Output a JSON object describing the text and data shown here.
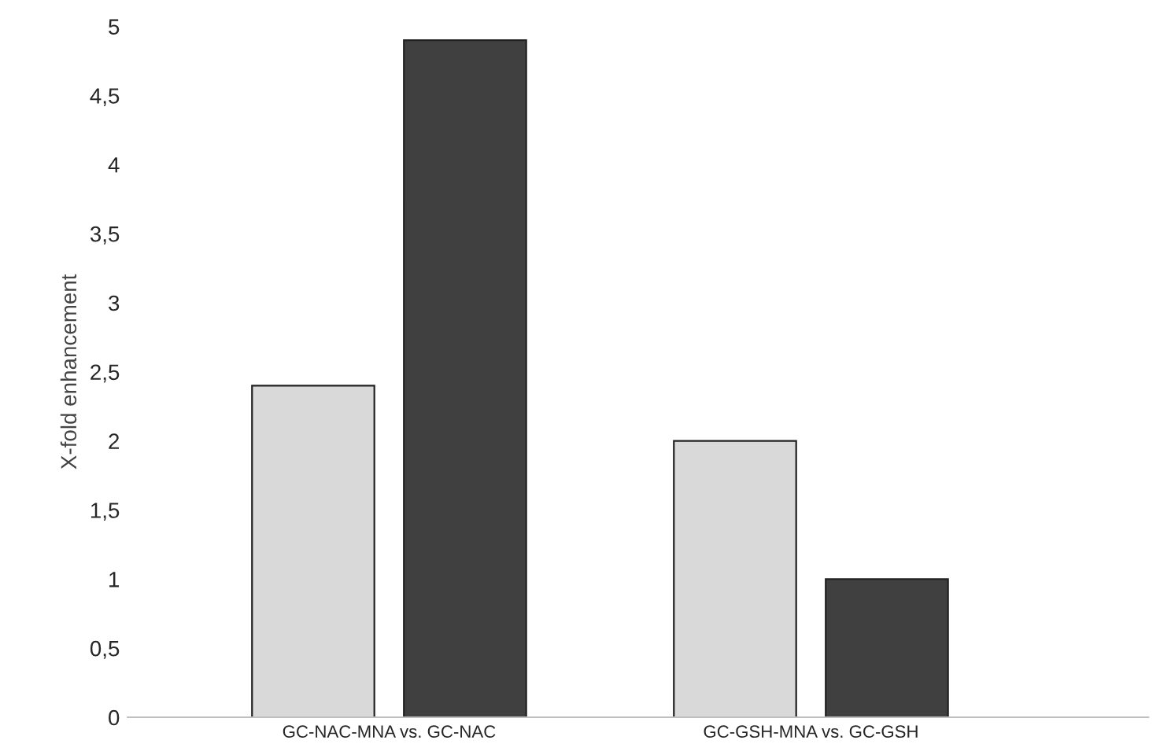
{
  "chart_data": {
    "type": "bar",
    "ylabel": "X-fold enhancement",
    "categories": [
      "GC-NAC-MNA vs. GC-NAC",
      "GC-GSH-MNA vs. GC-GSH"
    ],
    "series": [
      {
        "color": "#d9d9d9",
        "values": [
          2.4,
          2.0
        ]
      },
      {
        "color": "#404040",
        "values": [
          4.9,
          1.0
        ]
      }
    ],
    "ylim": [
      0,
      5
    ],
    "yticks": [
      0,
      {
        "value": 0.5,
        "label": "0,5"
      },
      1,
      {
        "value": 1.5,
        "label": "1,5"
      },
      2,
      {
        "value": 2.5,
        "label": "2,5"
      },
      3,
      {
        "value": 3.5,
        "label": "3,5"
      },
      4,
      {
        "value": 4.5,
        "label": "4,5"
      },
      5
    ],
    "grid": false,
    "legend": false
  }
}
